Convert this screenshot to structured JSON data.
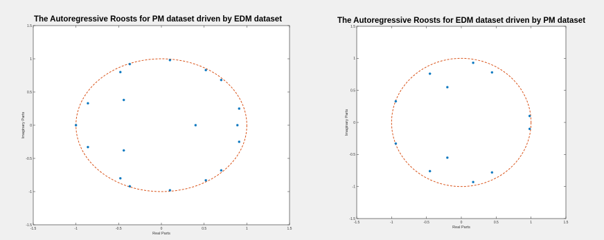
{
  "chart_data": [
    {
      "type": "scatter",
      "title": "The Autoregressive Roosts for PM dataset driven by EDM dataset",
      "xlabel": "Real Parts",
      "ylabel": "Imaginary Parts",
      "xlim": [
        -1.5,
        1.5
      ],
      "ylim": [
        -1.5,
        1.5
      ],
      "xticks": [
        "-1.5",
        "-1",
        "-0.5",
        "0",
        "0.5",
        "1",
        "1.5"
      ],
      "yticks": [
        "-1.5",
        "-1",
        "-0.5",
        "0",
        "0.5",
        "1",
        "1.5"
      ],
      "grid": false,
      "unit_circle": true,
      "marker_color": "#0072bd",
      "circle_color": "#d95319",
      "points": [
        {
          "x": 0.1,
          "y": 0.98
        },
        {
          "x": 0.1,
          "y": -0.98
        },
        {
          "x": -0.37,
          "y": 0.92
        },
        {
          "x": -0.37,
          "y": -0.92
        },
        {
          "x": -0.48,
          "y": 0.8
        },
        {
          "x": -0.48,
          "y": -0.8
        },
        {
          "x": 0.52,
          "y": 0.83
        },
        {
          "x": 0.52,
          "y": -0.83
        },
        {
          "x": 0.7,
          "y": 0.68
        },
        {
          "x": 0.7,
          "y": -0.68
        },
        {
          "x": 0.91,
          "y": 0.25
        },
        {
          "x": 0.91,
          "y": -0.25
        },
        {
          "x": 0.89,
          "y": 0.0
        },
        {
          "x": 0.4,
          "y": 0.0
        },
        {
          "x": -1.0,
          "y": 0.0
        },
        {
          "x": -0.86,
          "y": 0.33
        },
        {
          "x": -0.86,
          "y": -0.33
        },
        {
          "x": -0.44,
          "y": 0.38
        },
        {
          "x": -0.44,
          "y": -0.38
        }
      ]
    },
    {
      "type": "scatter",
      "title": "The Autoregressive Roosts for EDM dataset driven by PM dataset",
      "xlabel": "Real Parts",
      "ylabel": "Imaginary Parts",
      "xlim": [
        -1.5,
        1.5
      ],
      "ylim": [
        -1.5,
        1.5
      ],
      "xticks": [
        "-1.5",
        "-1",
        "-0.5",
        "0",
        "0.5",
        "1",
        "1.5"
      ],
      "yticks": [
        "-1.5",
        "-1",
        "-0.5",
        "0",
        "0.5",
        "1",
        "1.5"
      ],
      "grid": false,
      "unit_circle": true,
      "marker_color": "#0072bd",
      "circle_color": "#d95319",
      "points": [
        {
          "x": 0.17,
          "y": 0.93
        },
        {
          "x": 0.17,
          "y": -0.93
        },
        {
          "x": 0.44,
          "y": 0.78
        },
        {
          "x": 0.44,
          "y": -0.78
        },
        {
          "x": -0.45,
          "y": 0.76
        },
        {
          "x": -0.45,
          "y": -0.76
        },
        {
          "x": -0.2,
          "y": 0.55
        },
        {
          "x": -0.2,
          "y": -0.55
        },
        {
          "x": -0.94,
          "y": 0.33
        },
        {
          "x": -0.94,
          "y": -0.33
        },
        {
          "x": 0.98,
          "y": 0.1
        },
        {
          "x": 0.98,
          "y": -0.1
        }
      ]
    }
  ]
}
